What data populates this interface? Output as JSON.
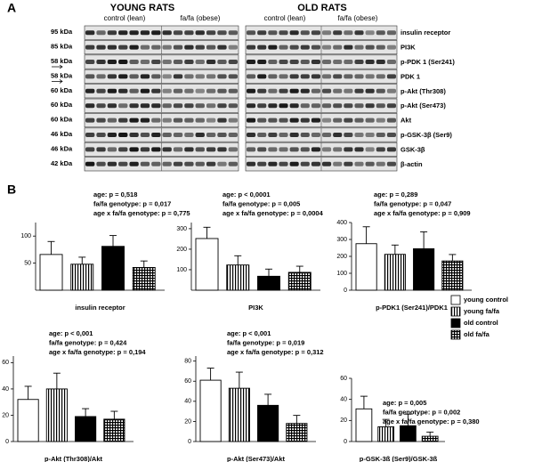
{
  "panel_a": {
    "label": "A",
    "groups": [
      "YOUNG RATS",
      "OLD RATS"
    ],
    "subgroups": [
      "control (lean)",
      "fa/fa (obese)",
      "control (lean)",
      "fa/fa (obese)"
    ],
    "rows": [
      {
        "kda": "95 kDa",
        "protein": "insulin receptor"
      },
      {
        "kda": "85 kDa",
        "protein": "PI3K"
      },
      {
        "kda": "58 kDa",
        "protein": "p-PDK 1 (Ser241)"
      },
      {
        "kda": "58 kDa",
        "protein": "PDK 1"
      },
      {
        "kda": "60 kDa",
        "protein": "p-Akt (Thr308)"
      },
      {
        "kda": "60 kDa",
        "protein": "p-Akt (Ser473)"
      },
      {
        "kda": "60 kDa",
        "protein": "Akt"
      },
      {
        "kda": "46 kDa",
        "protein": "p-GSK-3β (Ser9)"
      },
      {
        "kda": "46 kDa",
        "protein": "GSK-3β"
      },
      {
        "kda": "42 kDa",
        "protein": "β-actin"
      }
    ]
  },
  "panel_b_label": "B",
  "legend": [
    {
      "name": "young control",
      "fill": "white"
    },
    {
      "name": "young fa/fa",
      "fill": "vertical-stripes"
    },
    {
      "name": "old control",
      "fill": "black"
    },
    {
      "name": "old fa/fa",
      "fill": "checkered"
    }
  ],
  "chart_data": [
    {
      "type": "bar",
      "xlabel": "insulin receptor",
      "annotations": [
        "age: p = 0,518",
        "fa/fa genotype: p = 0,017",
        "age x fa/fa genotype: p = 0,775"
      ],
      "values": [
        66,
        48,
        81,
        42
      ],
      "errors": [
        24,
        13,
        20,
        12
      ],
      "ylim": [
        0,
        125
      ],
      "yticks": [
        50,
        100
      ]
    },
    {
      "type": "bar",
      "xlabel": "PI3K",
      "annotations": [
        "age: p < 0,0001",
        "fa/fa genotype: p = 0,005",
        "age x fa/fa genotype: p = 0,0004"
      ],
      "values": [
        252,
        123,
        68,
        87
      ],
      "errors": [
        55,
        45,
        35,
        30
      ],
      "ylim": [
        0,
        330
      ],
      "yticks": [
        100,
        200,
        300
      ]
    },
    {
      "type": "bar",
      "xlabel": "p-PDK1 (Ser241)/PDK1",
      "annotations": [
        "age: p = 0,289",
        "fa/fa genotype: p = 0,047",
        "age x fa/fa genotype: p = 0,909"
      ],
      "values": [
        275,
        212,
        245,
        173
      ],
      "errors": [
        100,
        55,
        100,
        38
      ],
      "ylim": [
        0,
        400
      ],
      "yticks": [
        0,
        100,
        200,
        300,
        400
      ]
    },
    {
      "type": "bar",
      "xlabel": "p-Akt (Thr308)/Akt",
      "annotations": [
        "age: p < 0,001",
        "fa/fa genotype: p = 0,424",
        "age x fa/fa genotype: p = 0,194"
      ],
      "values": [
        32,
        40,
        19,
        17
      ],
      "errors": [
        10,
        12,
        6,
        6
      ],
      "ylim": [
        0,
        65
      ],
      "yticks": [
        0,
        20,
        40,
        60
      ]
    },
    {
      "type": "bar",
      "xlabel": "p-Akt (Ser473)/Akt",
      "annotations": [
        "age: p < 0,001",
        "fa/fa genotype: p = 0,019",
        "age x fa/fa genotype: p = 0,312"
      ],
      "values": [
        61,
        53,
        36,
        18
      ],
      "errors": [
        12,
        16,
        11,
        8
      ],
      "ylim": [
        0,
        85
      ],
      "yticks": [
        0,
        20,
        40,
        60,
        80
      ]
    },
    {
      "type": "bar",
      "xlabel": "p-GSK-3ß (Ser9)/GSK-3ß",
      "annotations": [
        "age: p = 0,005",
        "fa/fa genotype: p = 0,002",
        "age x fa/fa genotype: p = 0,380"
      ],
      "values": [
        31,
        14,
        15,
        5
      ],
      "errors": [
        12,
        7,
        11,
        4
      ],
      "ylim": [
        0,
        60
      ],
      "yticks": [
        0,
        20,
        40,
        60
      ]
    }
  ]
}
